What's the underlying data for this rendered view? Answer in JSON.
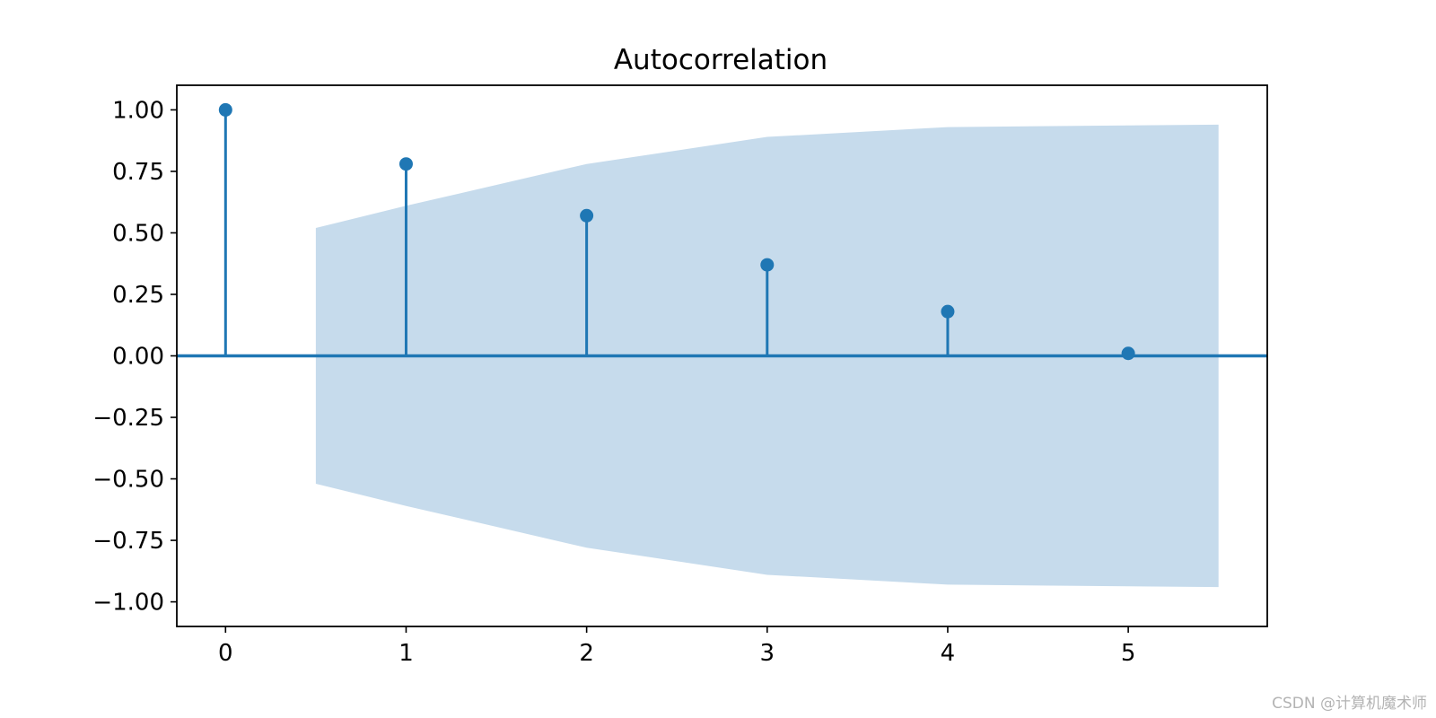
{
  "chart_data": {
    "type": "stem",
    "title": "Autocorrelation",
    "xlabel": "",
    "ylabel": "",
    "x": [
      0,
      1,
      2,
      3,
      4,
      5
    ],
    "values": [
      1.0,
      0.78,
      0.57,
      0.37,
      0.18,
      0.01
    ],
    "confidence_band": {
      "x": [
        0.5,
        1,
        2,
        3,
        4,
        5.5
      ],
      "upper": [
        0.52,
        0.61,
        0.78,
        0.89,
        0.93,
        0.94
      ]
    },
    "xlim": [
      -0.27,
      5.77
    ],
    "ylim": [
      -1.1,
      1.1
    ],
    "x_ticks": [
      "0",
      "1",
      "2",
      "3",
      "4",
      "5"
    ],
    "y_ticks": [
      "1.00",
      "0.75",
      "0.50",
      "0.25",
      "0.00",
      "−0.25",
      "−0.50",
      "−0.75",
      "−1.00"
    ],
    "grid": false,
    "colors": {
      "series": "#1f77b4",
      "band": "#c6dbec"
    }
  },
  "watermark": "CSDN @计算机魔术师"
}
